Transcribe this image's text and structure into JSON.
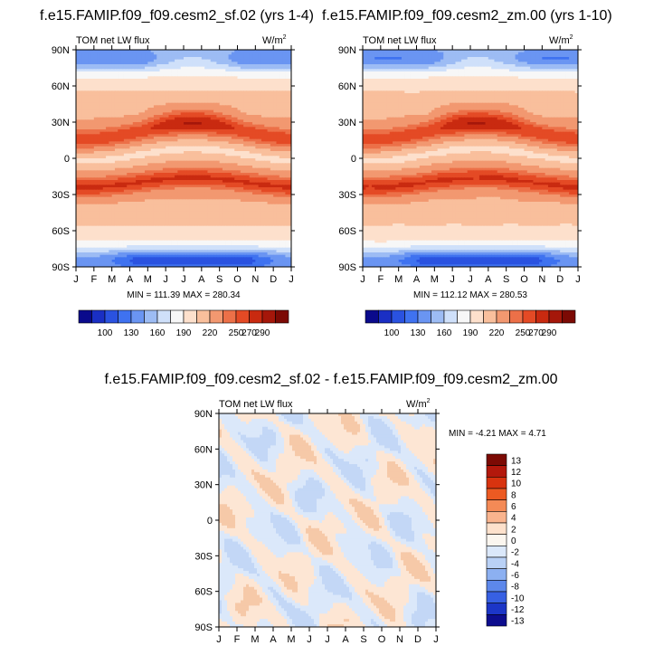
{
  "chart_data": [
    {
      "type": "heatmap",
      "title": "f.e15.FAMIP.f09_f09.cesm2_sf.02 (yrs 1-4)",
      "variable": "TOM net LW flux",
      "units": "W/m",
      "units_exp": "2",
      "x_ticks": [
        "J",
        "F",
        "M",
        "A",
        "M",
        "J",
        "J",
        "A",
        "S",
        "O",
        "N",
        "D",
        "J"
      ],
      "y_ticks": [
        "90N",
        "60N",
        "30N",
        "0",
        "30S",
        "60S",
        "90S"
      ],
      "stats": "MIN = 111.39 MAX = 280.34",
      "colorbar_levels": [
        100,
        130,
        160,
        190,
        220,
        250,
        270,
        290
      ],
      "colorbar_labels": [
        "100",
        "130",
        "160",
        "190",
        "220",
        "250",
        "270",
        "290"
      ],
      "colorbar_orientation": "horizontal"
    },
    {
      "type": "heatmap",
      "title": "f.e15.FAMIP.f09_f09.cesm2_zm.00 (yrs 1-10)",
      "variable": "TOM net LW flux",
      "units": "W/m",
      "units_exp": "2",
      "x_ticks": [
        "J",
        "F",
        "M",
        "A",
        "M",
        "J",
        "J",
        "A",
        "S",
        "O",
        "N",
        "D",
        "J"
      ],
      "y_ticks": [
        "90N",
        "60N",
        "30N",
        "0",
        "30S",
        "60S",
        "90S"
      ],
      "stats": "MIN = 112.12 MAX = 280.53",
      "colorbar_levels": [
        100,
        130,
        160,
        190,
        220,
        250,
        270,
        290
      ],
      "colorbar_labels": [
        "100",
        "130",
        "160",
        "190",
        "220",
        "250",
        "270",
        "290"
      ],
      "colorbar_orientation": "horizontal"
    },
    {
      "type": "heatmap",
      "title": "f.e15.FAMIP.f09_f09.cesm2_sf.02 - f.e15.FAMIP.f09_f09.cesm2_zm.00",
      "variable": "TOM net LW flux",
      "units": "W/m",
      "units_exp": "2",
      "x_ticks": [
        "J",
        "F",
        "M",
        "A",
        "M",
        "J",
        "J",
        "A",
        "S",
        "O",
        "N",
        "D",
        "J"
      ],
      "y_ticks": [
        "90N",
        "60N",
        "30N",
        "0",
        "30S",
        "60S",
        "90S"
      ],
      "stats": "MIN =  -4.21 MAX =   4.71",
      "colorbar_levels": [
        13,
        12,
        10,
        8,
        6,
        4,
        2,
        0,
        -2,
        -4,
        -6,
        -8,
        -10,
        -12,
        -13
      ],
      "colorbar_labels": [
        "13",
        "12",
        "10",
        "8",
        "6",
        "4",
        "2",
        "0",
        "-2",
        "-4",
        "-6",
        "-8",
        "-10",
        "-12",
        "-13"
      ],
      "colorbar_orientation": "vertical"
    }
  ],
  "colors": {
    "full_palette": [
      "#0a0a8c",
      "#1a2fc4",
      "#2a52e0",
      "#3f72f0",
      "#6a95f2",
      "#9dbcf4",
      "#cfe0fa",
      "#f7f7f7",
      "#fde0cc",
      "#f9bf9c",
      "#f29870",
      "#ec7048",
      "#e44a25",
      "#c92a10",
      "#a5170a",
      "#7c0a04"
    ],
    "diff_palette": [
      "#7c0a04",
      "#b3180c",
      "#d8330f",
      "#ec5a22",
      "#f48a56",
      "#f9b48e",
      "#fde1cc",
      "#fbf6ef",
      "#dbe8fa",
      "#b9d1f6",
      "#8cb0f1",
      "#5d88eb",
      "#3760e3",
      "#1c36c7",
      "#0d0d8e"
    ]
  }
}
